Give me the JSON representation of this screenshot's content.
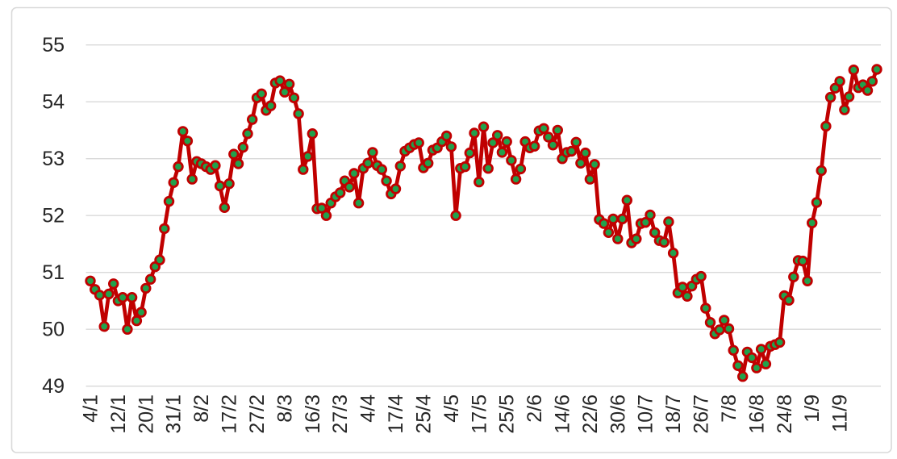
{
  "chart_data": {
    "type": "line",
    "title": "",
    "legend": "none",
    "grid": "horizontal-only",
    "ylim": [
      49,
      55
    ],
    "y_ticks": [
      55,
      54,
      53,
      52,
      51,
      50,
      49
    ],
    "x_label_every": 6,
    "x_labels": [
      "4/1",
      "12/1",
      "20/1",
      "31/1",
      "8/2",
      "17/2",
      "27/2",
      "8/3",
      "16/3",
      "27/3",
      "4/4",
      "17/4",
      "25/4",
      "4/5",
      "17/5",
      "25/5",
      "2/6",
      "14/6",
      "22/6",
      "30/6",
      "10/7",
      "18/7",
      "26/7",
      "7/8",
      "16/8",
      "24/8",
      "1/9",
      "11/9"
    ],
    "values": [
      50.85,
      50.7,
      50.6,
      50.05,
      50.62,
      50.8,
      50.5,
      50.56,
      50.0,
      50.56,
      50.15,
      50.3,
      50.72,
      50.88,
      51.1,
      51.22,
      51.77,
      52.25,
      52.58,
      52.86,
      53.48,
      53.31,
      52.64,
      52.95,
      52.91,
      52.86,
      52.81,
      52.88,
      52.52,
      52.14,
      52.56,
      53.08,
      52.91,
      53.2,
      53.44,
      53.69,
      54.07,
      54.14,
      53.85,
      53.93,
      54.33,
      54.37,
      54.17,
      54.31,
      54.07,
      53.79,
      52.81,
      53.04,
      53.44,
      52.12,
      52.13,
      52.0,
      52.22,
      52.33,
      52.4,
      52.61,
      52.5,
      52.74,
      52.22,
      52.83,
      52.92,
      53.11,
      52.88,
      52.81,
      52.61,
      52.38,
      52.47,
      52.87,
      53.13,
      53.19,
      53.25,
      53.28,
      52.84,
      52.92,
      53.15,
      53.19,
      53.3,
      53.4,
      53.21,
      52.0,
      52.83,
      52.86,
      53.1,
      53.45,
      52.59,
      53.56,
      52.83,
      53.28,
      53.41,
      53.11,
      53.3,
      52.97,
      52.64,
      52.82,
      53.3,
      53.19,
      53.22,
      53.49,
      53.53,
      53.38,
      53.24,
      53.5,
      53.0,
      53.11,
      53.13,
      53.29,
      52.92,
      53.1,
      52.64,
      52.9,
      51.93,
      51.86,
      51.7,
      51.94,
      51.59,
      51.94,
      52.27,
      51.52,
      51.59,
      51.86,
      51.88,
      52.01,
      51.7,
      51.56,
      51.53,
      51.89,
      51.34,
      50.64,
      50.74,
      50.58,
      50.76,
      50.88,
      50.93,
      50.37,
      50.12,
      49.92,
      49.99,
      50.16,
      50.01,
      49.63,
      49.36,
      49.17,
      49.6,
      49.5,
      49.32,
      49.65,
      49.39,
      49.7,
      49.73,
      49.77,
      50.59,
      50.51,
      50.92,
      51.21,
      51.2,
      50.85,
      51.87,
      52.23,
      52.79,
      53.57,
      54.08,
      54.24,
      54.36,
      53.86,
      54.09,
      54.56,
      54.25,
      54.3,
      54.2,
      54.36,
      54.57
    ],
    "colors": {
      "line": "#C00000",
      "marker_fill": "#21A14C",
      "marker_outline": "#C00000",
      "gridline": "#D9D9D9",
      "axis_text": "#262626",
      "frame_border": "#D9D9D9",
      "background": "#FFFFFF"
    }
  }
}
